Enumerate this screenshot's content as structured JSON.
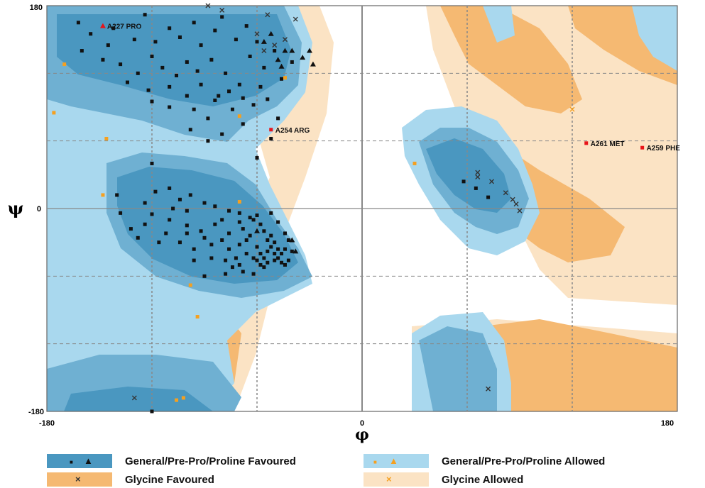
{
  "chart_data": {
    "type": "scatter",
    "title": "",
    "xlabel": "φ",
    "ylabel": "ψ",
    "xlim": [
      -180,
      180
    ],
    "ylim": [
      -180,
      180
    ],
    "x_tick_labels": [
      "-180",
      "0",
      "180"
    ],
    "y_tick_labels": [
      "180",
      "0",
      "-180"
    ],
    "grid": true,
    "colors": {
      "general_favoured": "#4a97c0",
      "general_allowed": "#a9d8ee",
      "glycine_favoured": "#f5b972",
      "glycine_allowed": "#fbe3c4",
      "outlier": "#e8141a",
      "allowed_point": "#f5a020",
      "favoured_point": "#111111"
    },
    "series": [
      {
        "name": "General/Pre-Pro/Proline Favoured",
        "marker": "square",
        "points": [
          [
            -162,
            165
          ],
          [
            -155,
            155
          ],
          [
            -145,
            145
          ],
          [
            -142,
            160
          ],
          [
            -130,
            150
          ],
          [
            -124,
            172
          ],
          [
            -118,
            148
          ],
          [
            -110,
            160
          ],
          [
            -104,
            152
          ],
          [
            -96,
            165
          ],
          [
            -92,
            145
          ],
          [
            -84,
            158
          ],
          [
            -80,
            170
          ],
          [
            -72,
            150
          ],
          [
            -66,
            162
          ],
          [
            -60,
            148
          ],
          [
            -160,
            140
          ],
          [
            -148,
            132
          ],
          [
            -138,
            128
          ],
          [
            -128,
            120
          ],
          [
            -120,
            135
          ],
          [
            -114,
            125
          ],
          [
            -106,
            118
          ],
          [
            -100,
            130
          ],
          [
            -94,
            122
          ],
          [
            -86,
            132
          ],
          [
            -78,
            120
          ],
          [
            -70,
            110
          ],
          [
            -64,
            135
          ],
          [
            -56,
            125
          ],
          [
            -50,
            140
          ],
          [
            -46,
            115
          ],
          [
            -40,
            130
          ],
          [
            -134,
            112
          ],
          [
            -122,
            105
          ],
          [
            -110,
            108
          ],
          [
            -100,
            100
          ],
          [
            -92,
            110
          ],
          [
            -84,
            96
          ],
          [
            -76,
            104
          ],
          [
            -68,
            98
          ],
          [
            -58,
            108
          ],
          [
            -120,
            95
          ],
          [
            -110,
            90
          ],
          [
            -96,
            88
          ],
          [
            -88,
            80
          ],
          [
            -82,
            100
          ],
          [
            -74,
            88
          ],
          [
            -68,
            75
          ],
          [
            -62,
            92
          ],
          [
            -54,
            97
          ],
          [
            -48,
            80
          ],
          [
            -98,
            70
          ],
          [
            -88,
            60
          ],
          [
            -80,
            66
          ],
          [
            -52,
            62
          ],
          [
            -120,
            40
          ],
          [
            -60,
            45
          ],
          [
            -140,
            12
          ],
          [
            -124,
            5
          ],
          [
            -118,
            15
          ],
          [
            -110,
            18
          ],
          [
            -104,
            8
          ],
          [
            -98,
            12
          ],
          [
            -90,
            5
          ],
          [
            -84,
            2
          ],
          [
            -76,
            -2
          ],
          [
            -70,
            -4
          ],
          [
            -64,
            -8
          ],
          [
            -120,
            -5
          ],
          [
            -110,
            -10
          ],
          [
            -100,
            -15
          ],
          [
            -92,
            -20
          ],
          [
            -84,
            -14
          ],
          [
            -76,
            -22
          ],
          [
            -68,
            -18
          ],
          [
            -62,
            -10
          ],
          [
            -58,
            -14
          ],
          [
            -56,
            -20
          ],
          [
            -54,
            -28
          ],
          [
            -52,
            -24
          ],
          [
            -50,
            -30
          ],
          [
            -66,
            -28
          ],
          [
            -70,
            -32
          ],
          [
            -60,
            -34
          ],
          [
            -58,
            -40
          ],
          [
            -56,
            -44
          ],
          [
            -54,
            -38
          ],
          [
            -52,
            -34
          ],
          [
            -50,
            -40
          ],
          [
            -48,
            -44
          ],
          [
            -46,
            -40
          ],
          [
            -44,
            -36
          ],
          [
            -48,
            -36
          ],
          [
            -62,
            -44
          ],
          [
            -60,
            -46
          ],
          [
            -66,
            -40
          ],
          [
            -72,
            -44
          ],
          [
            -76,
            -36
          ],
          [
            -80,
            -28
          ],
          [
            -86,
            -32
          ],
          [
            -90,
            -26
          ],
          [
            -96,
            -36
          ],
          [
            -104,
            -30
          ],
          [
            -100,
            -22
          ],
          [
            -112,
            -22
          ],
          [
            -124,
            -14
          ],
          [
            -128,
            -26
          ],
          [
            -86,
            -44
          ],
          [
            -78,
            -46
          ],
          [
            -70,
            -50
          ],
          [
            -96,
            -46
          ],
          [
            -58,
            -50
          ],
          [
            -54,
            -48
          ],
          [
            -50,
            -46
          ],
          [
            -46,
            -48
          ],
          [
            -60,
            -6
          ],
          [
            -52,
            -4
          ],
          [
            -48,
            -12
          ],
          [
            -44,
            -22
          ],
          [
            -42,
            -28
          ],
          [
            -138,
            -4
          ],
          [
            -132,
            -18
          ],
          [
            -100,
            -2
          ],
          [
            -108,
            0
          ],
          [
            -116,
            -30
          ],
          [
            -80,
            -10
          ],
          [
            -70,
            -12
          ],
          [
            -64,
            -24
          ],
          [
            -40,
            -38
          ],
          [
            -42,
            -46
          ],
          [
            -44,
            -50
          ],
          [
            -56,
            -52
          ],
          [
            -120,
            -180
          ],
          [
            -90,
            -60
          ],
          [
            -78,
            -58
          ],
          [
            -68,
            -56
          ],
          [
            -74,
            -52
          ],
          [
            -62,
            -58
          ],
          [
            58,
            24
          ],
          [
            65,
            18
          ],
          [
            72,
            10
          ]
        ]
      },
      {
        "name": "General/Pre-Pro/Proline Favoured",
        "marker": "triangle",
        "points": [
          [
            -60,
            -20
          ],
          [
            -40,
            -28
          ],
          [
            -38,
            -38
          ],
          [
            -44,
            140
          ],
          [
            -48,
            132
          ],
          [
            -40,
            140
          ],
          [
            -34,
            134
          ],
          [
            -52,
            155
          ],
          [
            -56,
            148
          ],
          [
            -46,
            126
          ],
          [
            -30,
            140
          ],
          [
            -28,
            128
          ]
        ]
      },
      {
        "name": "General/Pre-Pro/Proline Allowed",
        "marker": "square",
        "points": [
          [
            -170,
            128
          ],
          [
            -176,
            85
          ],
          [
            -146,
            62
          ],
          [
            -148,
            12
          ],
          [
            -98,
            -68
          ],
          [
            -94,
            -96
          ],
          [
            -106,
            -170
          ],
          [
            -102,
            -168
          ],
          [
            -70,
            82
          ],
          [
            -70,
            6
          ],
          [
            -44,
            116
          ],
          [
            30,
            40
          ]
        ]
      },
      {
        "name": "Glycine Favoured",
        "marker": "cross",
        "points": [
          [
            -88,
            180
          ],
          [
            -80,
            176
          ],
          [
            -54,
            172
          ],
          [
            -38,
            168
          ],
          [
            -44,
            150
          ],
          [
            -50,
            145
          ],
          [
            -56,
            140
          ],
          [
            -60,
            155
          ],
          [
            66,
            32
          ],
          [
            66,
            28
          ],
          [
            74,
            24
          ],
          [
            82,
            14
          ],
          [
            86,
            8
          ],
          [
            88,
            4
          ],
          [
            90,
            -2
          ],
          [
            72,
            -160
          ],
          [
            -130,
            -168
          ]
        ]
      },
      {
        "name": "Glycine Allowed",
        "marker": "cross",
        "points": [
          [
            120,
            88
          ]
        ]
      }
    ],
    "outliers": [
      {
        "label": "A227 PRO",
        "marker": "triangle",
        "x": -148,
        "y": 162
      },
      {
        "label": "A254 ARG",
        "marker": "square",
        "x": -52,
        "y": 70
      },
      {
        "label": "A261 MET",
        "marker": "square",
        "x": 128,
        "y": 58
      },
      {
        "label": "A259 PHE",
        "marker": "square",
        "x": 160,
        "y": 54
      }
    ],
    "legend": [
      {
        "label": "General/Pre-Pro/Proline Favoured",
        "swatch": "general_favoured",
        "symbols": [
          "■",
          "▲"
        ],
        "symbol_color": "#111111"
      },
      {
        "label": "General/Pre-Pro/Proline Allowed",
        "swatch": "general_allowed",
        "symbols": [
          "■",
          "▲"
        ],
        "symbol_color": "#f5a020"
      },
      {
        "label": "Glycine Favoured",
        "swatch": "glycine_favoured",
        "symbols": [
          "×"
        ],
        "symbol_color": "#333333"
      },
      {
        "label": "Glycine Allowed",
        "swatch": "glycine_allowed",
        "symbols": [
          "×"
        ],
        "symbol_color": "#f5a020"
      }
    ],
    "legend_placement": "bottom"
  }
}
